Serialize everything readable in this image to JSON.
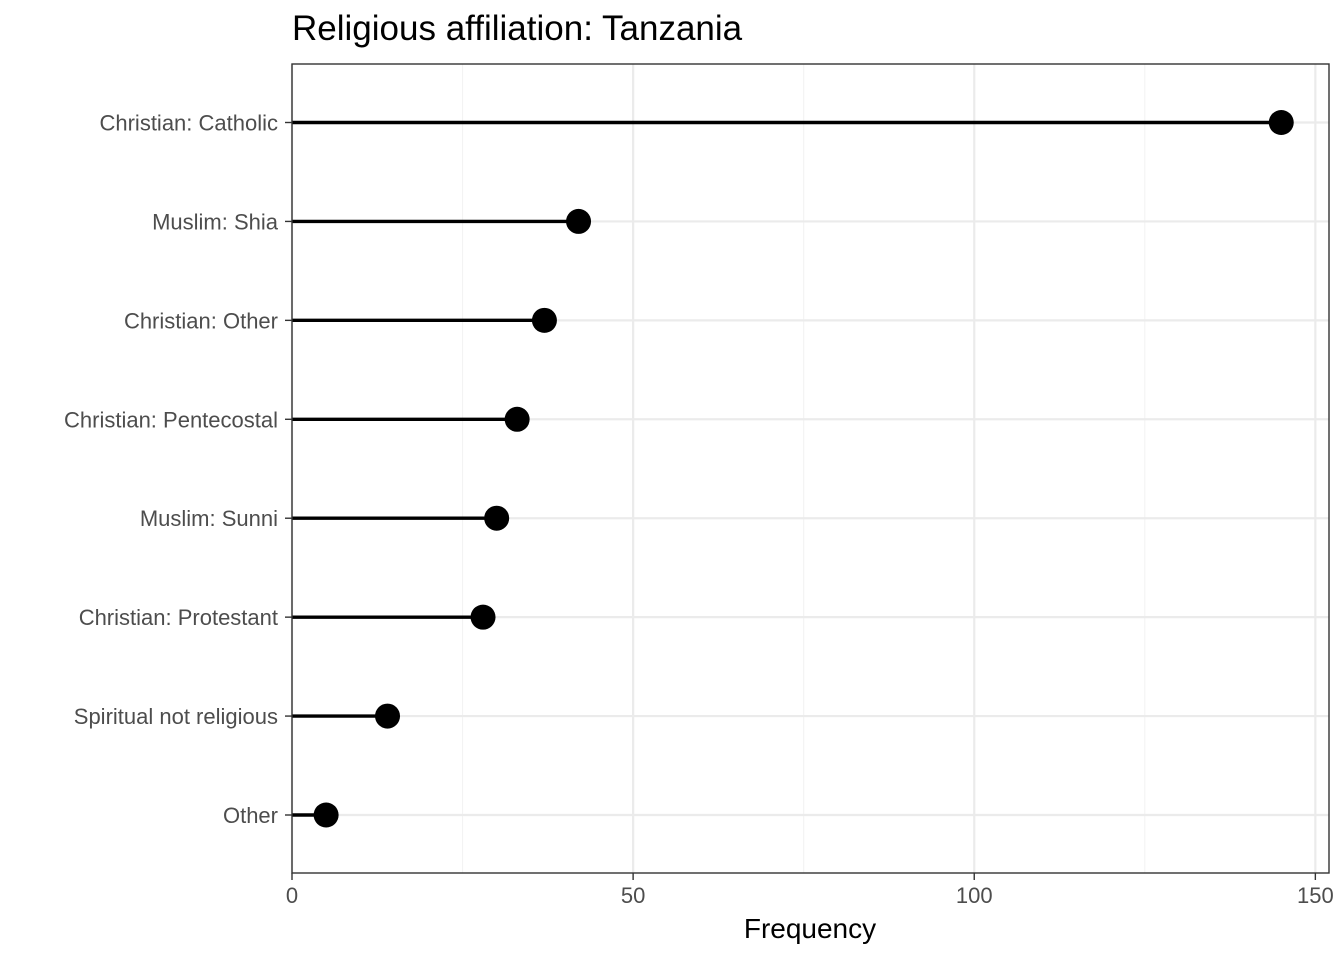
{
  "chart_data": {
    "type": "lollipop",
    "title": "Religious affiliation: Tanzania",
    "xlabel": "Frequency",
    "ylabel": "",
    "xlim": [
      0,
      152
    ],
    "x_ticks": [
      0,
      50,
      100,
      150
    ],
    "grid": true,
    "categories": [
      "Christian: Catholic",
      "Muslim: Shia",
      "Christian: Other",
      "Christian: Pentecostal",
      "Muslim: Sunni",
      "Christian: Protestant",
      "Spiritual not religious",
      "Other"
    ],
    "values": [
      145,
      42,
      37,
      33,
      30,
      28,
      14,
      5
    ],
    "colors": {
      "marks": "#000000",
      "grid_major": "#ebebeb",
      "grid_minor": "#f3f3f3",
      "panel_border": "#333333",
      "tick_labels": "#4d4d4d"
    }
  }
}
